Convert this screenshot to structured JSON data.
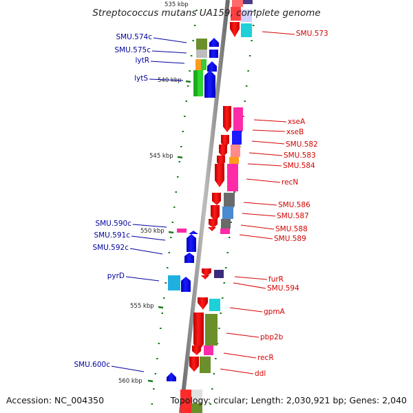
{
  "title": "Streptococcus mutans UA159, complete genome",
  "footer": {
    "accession": "Accession: NC_004350",
    "topology": "Topology: circular; Length: 2,030,921 bp; Genes: 2,040"
  },
  "scale_labels": [
    "535 kbp",
    "540 kbp",
    "545 kbp",
    "550 kbp",
    "555 kbp",
    "560 kbp"
  ],
  "genes_right": [
    "SMU.573",
    "xseA",
    "xseB",
    "SMU.582",
    "SMU.583",
    "SMU.584",
    "recN",
    "SMU.586",
    "SMU.587",
    "SMU.588",
    "SMU.589",
    "furR",
    "SMU.594",
    "gpmA",
    "pbp2b",
    "recR",
    "ddl"
  ],
  "genes_left": [
    "SMU.574c",
    "SMU.575c",
    "lytR",
    "lytS",
    "SMU.590c",
    "SMU.591c",
    "SMU.592c",
    "pyrD",
    "SMU.600c"
  ],
  "colors": {
    "forward_strand": "#ff0000",
    "reverse_strand": "#0000ff",
    "right_label": "#d40000",
    "left_label": "#00009e",
    "axis": "#909090",
    "tick": "#1a7a1a"
  }
}
